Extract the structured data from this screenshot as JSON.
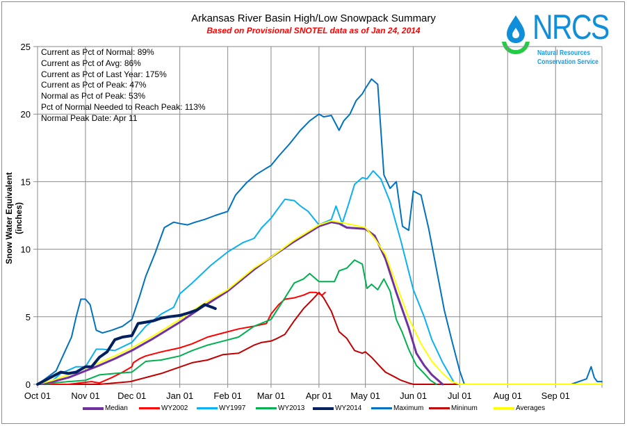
{
  "chart_data": {
    "type": "line",
    "title": "Arkansas River Basin High/Low Snowpack Summary",
    "subtitle": "Based on Provisional SNOTEL data as of Jan 24, 2014",
    "xlabel": "",
    "ylabel": "Snow Water Equivalent (inches)",
    "ylim": [
      0,
      25
    ],
    "yticks": [
      0,
      5,
      10,
      15,
      20,
      25
    ],
    "x_unit": "day of water year (0 = Oct 01)",
    "xlim": [
      0,
      365
    ],
    "xticks": [
      {
        "day": 0,
        "label": "Oct 01"
      },
      {
        "day": 31,
        "label": "Nov 01"
      },
      {
        "day": 61,
        "label": "Dec 01"
      },
      {
        "day": 92,
        "label": "Jan 01"
      },
      {
        "day": 123,
        "label": "Feb 01"
      },
      {
        "day": 151,
        "label": "Mar 01"
      },
      {
        "day": 182,
        "label": "Apr 01"
      },
      {
        "day": 212,
        "label": "May 01"
      },
      {
        "day": 243,
        "label": "Jun 01"
      },
      {
        "day": 273,
        "label": "Jul 01"
      },
      {
        "day": 304,
        "label": "Aug 01"
      },
      {
        "day": 335,
        "label": "Sep 01"
      }
    ],
    "grid": true,
    "legend_position": "bottom",
    "series": [
      {
        "name": "Median",
        "color": "#7030a0",
        "width": 3,
        "x": [
          0,
          10,
          20,
          31,
          40,
          50,
          61,
          75,
          92,
          105,
          123,
          140,
          151,
          165,
          182,
          190,
          195,
          200,
          212,
          218,
          225,
          232,
          240,
          245,
          250,
          255,
          260,
          262
        ],
        "y": [
          0,
          0.2,
          0.5,
          1.0,
          1.4,
          1.9,
          2.5,
          3.4,
          4.6,
          5.6,
          6.9,
          8.5,
          9.4,
          10.5,
          11.7,
          12.0,
          11.9,
          11.6,
          11.5,
          11.0,
          9.3,
          6.8,
          4.2,
          2.3,
          1.4,
          0.7,
          0.2,
          0
        ]
      },
      {
        "name": "WY2002",
        "color": "#ff0000",
        "width": 2,
        "x": [
          0,
          20,
          35,
          40,
          48,
          55,
          61,
          62,
          66,
          70,
          80,
          92,
          100,
          110,
          120,
          130,
          140,
          148,
          151,
          156,
          160,
          166,
          172,
          176,
          180,
          184,
          186
        ],
        "y": [
          0,
          0,
          0.2,
          0.1,
          0.5,
          0.9,
          1.3,
          1.6,
          1.9,
          2.1,
          2.4,
          2.7,
          3.0,
          3.5,
          3.8,
          4.1,
          4.3,
          4.5,
          5.2,
          5.9,
          6.3,
          6.4,
          6.6,
          6.8,
          6.8,
          6.6,
          6.8
        ]
      },
      {
        "name": "WY1997",
        "color": "#0ab0f0",
        "width": 2,
        "x": [
          0,
          10,
          15,
          25,
          31,
          38,
          42,
          50,
          61,
          70,
          80,
          88,
          92,
          100,
          112,
          123,
          133,
          140,
          145,
          151,
          160,
          166,
          170,
          175,
          182,
          186,
          190,
          193,
          197,
          201,
          205,
          210,
          213,
          217,
          222,
          228,
          235,
          243,
          250,
          255,
          262,
          266,
          270
        ],
        "y": [
          0,
          0.3,
          0.8,
          1.3,
          1.3,
          2.6,
          2.6,
          2.5,
          3.1,
          4.3,
          5.2,
          5.7,
          6.7,
          7.5,
          8.8,
          9.8,
          10.5,
          10.8,
          11.6,
          12.3,
          13.7,
          13.6,
          13.2,
          12.8,
          11.8,
          12.0,
          12.2,
          13.2,
          11.9,
          13.3,
          14.8,
          15.3,
          15.2,
          15.8,
          15.2,
          13.5,
          10.6,
          7.0,
          5.0,
          3.3,
          1.6,
          0.8,
          0
        ]
      },
      {
        "name": "WY2013",
        "color": "#00b050",
        "width": 2,
        "x": [
          0,
          20,
          31,
          40,
          50,
          61,
          70,
          80,
          92,
          100,
          110,
          120,
          130,
          140,
          151,
          160,
          166,
          172,
          176,
          182,
          188,
          192,
          195,
          200,
          205,
          210,
          213,
          216,
          220,
          224,
          228,
          232,
          236,
          240,
          245,
          250,
          254,
          258
        ],
        "y": [
          0,
          0.2,
          0.3,
          0.7,
          0.8,
          0.9,
          1.7,
          1.8,
          2.1,
          2.5,
          2.9,
          3.2,
          3.5,
          4.3,
          4.8,
          6.4,
          7.5,
          7.8,
          8.2,
          7.6,
          7.6,
          7.6,
          8.4,
          8.6,
          9.2,
          8.9,
          7.1,
          7.4,
          7.0,
          7.8,
          6.9,
          4.8,
          3.8,
          2.6,
          1.4,
          0.8,
          0.3,
          0
        ]
      },
      {
        "name": "WY2014",
        "color": "#002060",
        "width": 4,
        "x": [
          0,
          5,
          10,
          15,
          20,
          25,
          31,
          35,
          40,
          45,
          50,
          55,
          61,
          65,
          70,
          75,
          80,
          85,
          92,
          98,
          103,
          108,
          113,
          115
        ],
        "y": [
          0,
          0.3,
          0.6,
          0.9,
          0.8,
          0.9,
          1.3,
          1.3,
          2.0,
          2.4,
          3.3,
          3.5,
          3.6,
          4.5,
          4.6,
          4.7,
          4.9,
          5.0,
          5.1,
          5.3,
          5.5,
          5.9,
          5.7,
          5.6
        ]
      },
      {
        "name": "Maximum",
        "color": "#0070c0",
        "width": 2,
        "x": [
          0,
          5,
          12,
          18,
          22,
          25,
          28,
          31,
          34,
          38,
          42,
          48,
          55,
          61,
          66,
          70,
          76,
          82,
          88,
          92,
          97,
          102,
          108,
          115,
          123,
          128,
          135,
          141,
          148,
          151,
          156,
          163,
          170,
          176,
          182,
          185,
          190,
          195,
          198,
          202,
          206,
          210,
          212,
          216,
          220,
          224,
          228,
          232,
          236,
          240,
          243,
          248,
          253,
          258,
          263,
          268,
          273,
          276,
          300,
          320,
          335,
          345,
          355,
          358,
          360,
          362,
          365
        ],
        "y": [
          0,
          0.4,
          1.0,
          2.5,
          3.5,
          5.0,
          6.3,
          6.3,
          5.9,
          4.0,
          3.8,
          4.0,
          4.3,
          4.8,
          6.5,
          8.0,
          9.7,
          11.6,
          12.0,
          11.9,
          11.8,
          12.0,
          12.2,
          12.5,
          12.8,
          14.0,
          14.9,
          15.5,
          16.0,
          16.2,
          16.9,
          17.8,
          18.8,
          19.5,
          20.0,
          19.8,
          19.9,
          18.8,
          19.5,
          20.0,
          21.0,
          21.5,
          21.9,
          22.6,
          22.2,
          15.5,
          14.5,
          15.0,
          11.7,
          11.4,
          14.3,
          14.0,
          11.5,
          8.5,
          5.5,
          3.2,
          1.0,
          0,
          0,
          0,
          0,
          0,
          0.4,
          1.3,
          0.5,
          0.2,
          0.2
        ]
      },
      {
        "name": "Mininum",
        "color": "#c00000",
        "width": 2,
        "x": [
          0,
          40,
          60,
          80,
          90,
          100,
          110,
          120,
          130,
          140,
          145,
          151,
          155,
          160,
          166,
          172,
          178,
          182,
          185,
          190,
          195,
          200,
          205,
          210,
          212,
          216,
          220,
          225,
          230,
          235,
          240,
          243,
          365
        ],
        "y": [
          0,
          0,
          0.2,
          0.8,
          1.2,
          1.6,
          1.8,
          2.2,
          2.3,
          2.9,
          3.1,
          3.2,
          3.4,
          3.7,
          4.7,
          5.6,
          6.3,
          6.8,
          6.4,
          5.4,
          3.9,
          3.4,
          2.5,
          2.3,
          2.4,
          2.0,
          1.5,
          0.9,
          0.6,
          0.3,
          0.1,
          0,
          0
        ]
      },
      {
        "name": "Averages",
        "color": "#ffff00",
        "width": 2,
        "x": [
          0,
          10,
          20,
          31,
          40,
          50,
          61,
          75,
          92,
          105,
          123,
          140,
          151,
          165,
          182,
          190,
          200,
          212,
          218,
          225,
          232,
          240,
          248,
          255,
          262,
          268,
          273,
          365
        ],
        "y": [
          0,
          0.3,
          0.7,
          1.2,
          1.6,
          2.1,
          2.7,
          3.6,
          4.8,
          5.8,
          7.0,
          8.6,
          9.4,
          10.6,
          11.8,
          12.1,
          11.9,
          11.6,
          10.8,
          9.6,
          7.4,
          4.9,
          3.0,
          1.7,
          0.8,
          0.2,
          0,
          0
        ]
      }
    ],
    "annotations": [
      "Current as Pct of Normal: 89%",
      "Current as Pct of Avg: 86%",
      "Current as Pct of Last Year: 175%",
      "Current as Pct of Peak: 47%",
      "Normal as Pct of Peak: 53%",
      "Pct of Normal Needed to Reach Peak: 113%",
      "Normal Peak Date: Apr 11"
    ]
  },
  "logo": {
    "name": "NRCS",
    "line1": "Natural Resources",
    "line2": "Conservation Service"
  }
}
